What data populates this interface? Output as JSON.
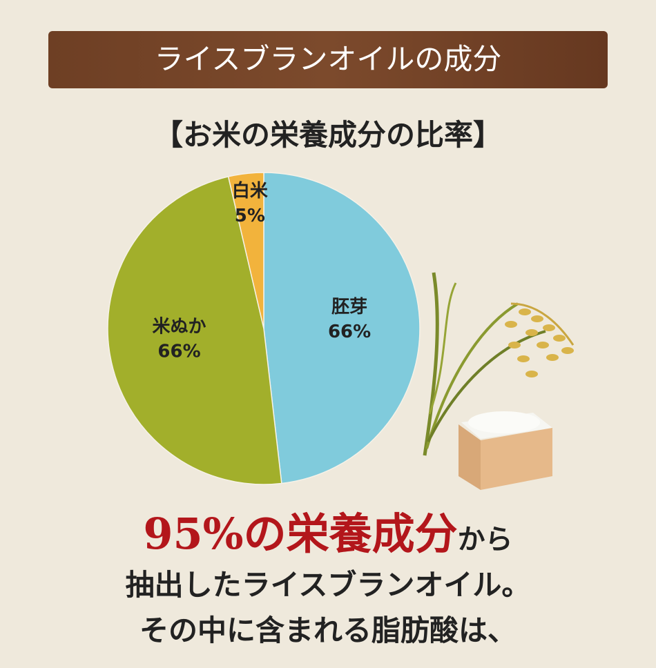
{
  "chart_data": {
    "type": "pie",
    "title": "ライスブランオイルの成分",
    "subtitle": "【お米の栄養成分の比率】",
    "categories": [
      "胚芽",
      "米ぬか",
      "白米"
    ],
    "values": [
      66,
      66,
      5
    ],
    "value_labels": [
      "66%",
      "66%",
      "5%"
    ],
    "colors": [
      "#80cbdc",
      "#a2af2b",
      "#f2b33c"
    ]
  },
  "caption": {
    "highlight": "95%の栄養成分",
    "rest": "から",
    "lines": [
      "抽出したライスブランオイル。",
      "その中に含まれる脂肪酸は、"
    ]
  }
}
